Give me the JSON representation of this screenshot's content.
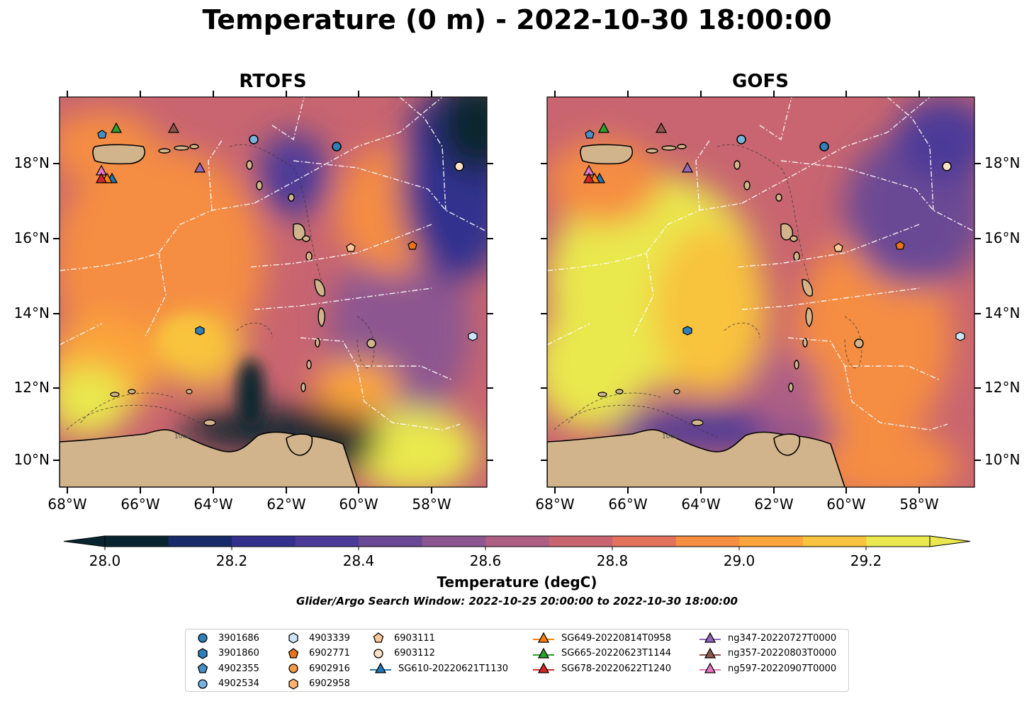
{
  "title": "Temperature (0 m) - 2022-10-30 18:00:00",
  "panels": [
    {
      "title": "RTOFS"
    },
    {
      "title": "GOFS"
    }
  ],
  "x_ticks": [
    "68°W",
    "66°W",
    "64°W",
    "62°W",
    "60°W",
    "58°W"
  ],
  "y_ticks": [
    "18°N",
    "16°N",
    "14°N",
    "12°N",
    "10°N"
  ],
  "colorbar": {
    "label": "Temperature (degC)",
    "tick_labels": [
      "28.0",
      "28.2",
      "28.4",
      "28.6",
      "28.8",
      "29.0",
      "29.2"
    ],
    "colors": [
      "#08252f",
      "#172a6a",
      "#33308e",
      "#4b3a98",
      "#6a4994",
      "#8c5790",
      "#ad5f84",
      "#c86570",
      "#e2725b",
      "#f58d42",
      "#fba53a",
      "#f8c33e",
      "#e9e84e"
    ]
  },
  "search_window": "Glider/Argo Search Window: 2022-10-25 20:00:00 to 2022-10-30 18:00:00",
  "legend": {
    "items": [
      {
        "label": "3901686",
        "marker": "circle",
        "color": "#2f7fb8"
      },
      {
        "label": "3901860",
        "marker": "hexagon",
        "color": "#2f7fb8"
      },
      {
        "label": "4902355",
        "marker": "pentagon",
        "color": "#4a8fc4"
      },
      {
        "label": "4902534",
        "marker": "circle",
        "color": "#78b3e0"
      },
      {
        "label": "4903339",
        "marker": "hexagon",
        "color": "#cde6f7"
      },
      {
        "label": "6902771",
        "marker": "pentagon",
        "color": "#e8731a"
      },
      {
        "label": "6902916",
        "marker": "circle",
        "color": "#f59a45"
      },
      {
        "label": "6902958",
        "marker": "hexagon",
        "color": "#fbb36c"
      },
      {
        "label": "6903111",
        "marker": "pentagon",
        "color": "#fcc99a"
      },
      {
        "label": "6903112",
        "marker": "circle",
        "color": "#fde2c6"
      },
      {
        "label": "SG610-20220621T1130",
        "marker": "triangle-line",
        "color": "#1f77b4"
      },
      {
        "label": "SG649-20220814T0958",
        "marker": "triangle-line",
        "color": "#ff7f0e"
      },
      {
        "label": "SG665-20220623T1144",
        "marker": "triangle-line",
        "color": "#2ca02c"
      },
      {
        "label": "SG678-20220622T1240",
        "marker": "triangle-line",
        "color": "#d62728"
      },
      {
        "label": "ng347-20220727T0000",
        "marker": "triangle-line",
        "color": "#9467bd"
      },
      {
        "label": "ng357-20220803T0000",
        "marker": "triangle-line",
        "color": "#8c564b"
      },
      {
        "label": "ng597-20220907T0000",
        "marker": "triangle-line",
        "color": "#e377c2"
      }
    ]
  },
  "colors": {
    "land": "#d2b48c",
    "eez_lines": "#ffffff",
    "bathymetry_contours": "#555555"
  },
  "contour_label": "1000"
}
